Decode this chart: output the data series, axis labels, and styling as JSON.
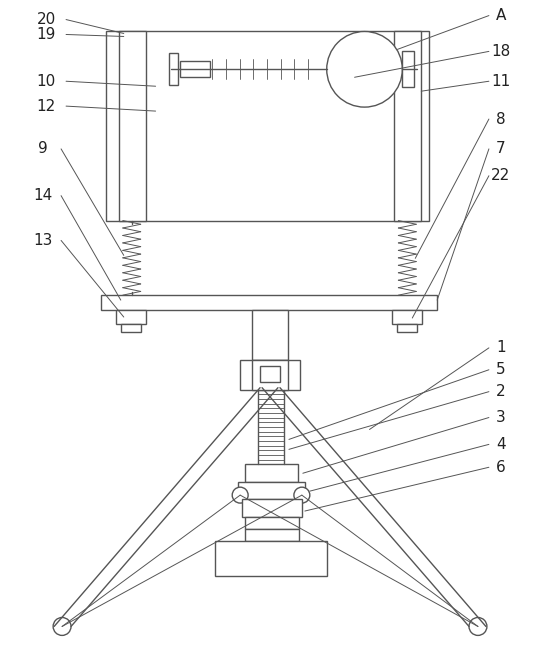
{
  "fig_width": 5.47,
  "fig_height": 6.49,
  "dpi": 100,
  "line_color": "#555555",
  "line_width": 1.0,
  "thin_line": 0.7,
  "text_color": "#222222",
  "font_size": 11,
  "background": "#ffffff"
}
